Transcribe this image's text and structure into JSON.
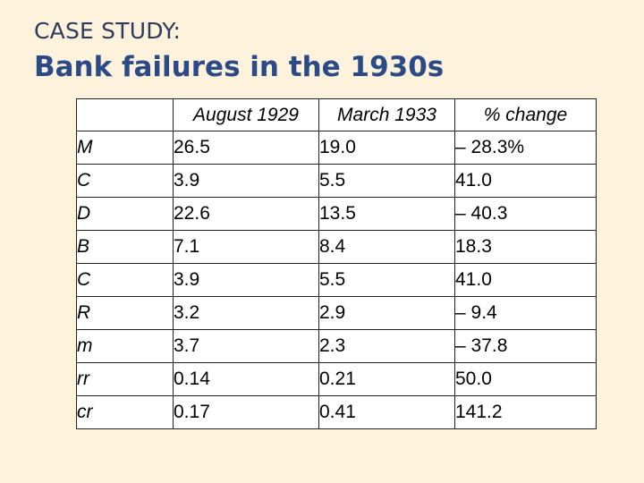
{
  "header": {
    "kicker": "CASE STUDY:",
    "title": "Bank failures in the 1930s"
  },
  "table": {
    "columns": [
      "",
      "August 1929",
      "March 1933",
      "% change"
    ],
    "rows": [
      {
        "var": "M",
        "aug": "26.5",
        "mar": "19.0",
        "chg": "– 28.3%"
      },
      {
        "var": "C",
        "aug": "3.9",
        "mar": "5.5",
        "chg": "41.0"
      },
      {
        "var": "D",
        "aug": "22.6",
        "mar": "13.5",
        "chg": "– 40.3"
      },
      {
        "var": "B",
        "aug": "7.1",
        "mar": "8.4",
        "chg": "18.3"
      },
      {
        "var": "C",
        "aug": "3.9",
        "mar": "5.5",
        "chg": "41.0"
      },
      {
        "var": "R",
        "aug": "3.2",
        "mar": "2.9",
        "chg": "– 9.4"
      },
      {
        "var": "m",
        "aug": "3.7",
        "mar": "2.3",
        "chg": "– 37.8"
      },
      {
        "var": "rr",
        "aug": "0.14",
        "mar": "0.21",
        "chg": "50.0"
      },
      {
        "var": "cr",
        "aug": "0.17",
        "mar": "0.41",
        "chg": "141.2"
      }
    ]
  }
}
